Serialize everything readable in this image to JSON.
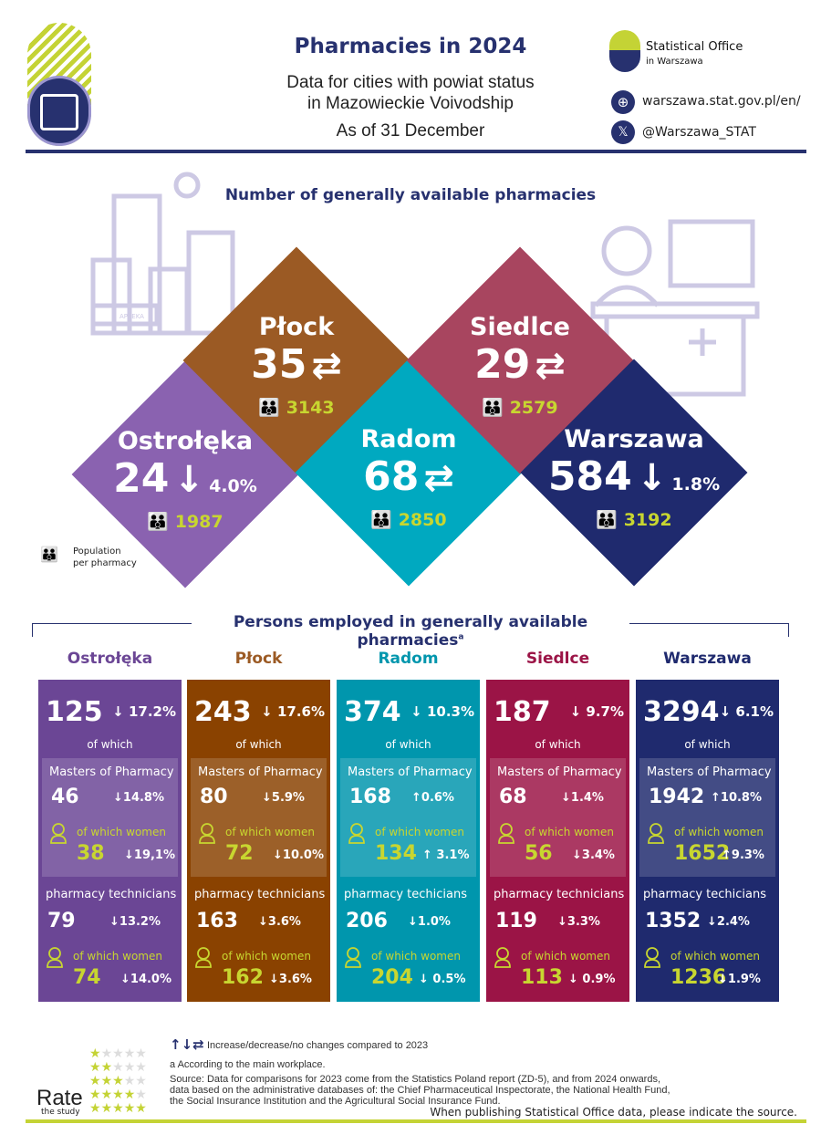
{
  "header": {
    "title": "Pharmacies in 2024",
    "subtitle1": "Data for cities with powiat status",
    "subtitle2": "in Mazowieckie Voivodship",
    "subtitle3": "As of 31 December",
    "org_name": "Statistical Office",
    "org_city": "in Warszawa",
    "website": "warszawa.stat.gov.pl/en/",
    "twitter": "@Warszawa_STAT",
    "pharmacy_sign": "APTEKA"
  },
  "colors": {
    "navy": "#27316f",
    "lime": "#c4d335"
  },
  "pharmacies": {
    "title": "Number of generally available pharmacies",
    "legend": "Population per pharmacy",
    "cities": [
      {
        "name": "Ostrołęka",
        "count": "24",
        "change": "down",
        "pct": "4.0%",
        "population": "1987",
        "color": "#8a62b0"
      },
      {
        "name": "Płock",
        "count": "35",
        "change": "none",
        "pct": "",
        "population": "3143",
        "color": "#9b5a24"
      },
      {
        "name": "Radom",
        "count": "68",
        "change": "none",
        "pct": "",
        "population": "2850",
        "color": "#00a9c0"
      },
      {
        "name": "Siedlce",
        "count": "29",
        "change": "none",
        "pct": "",
        "population": "2579",
        "color": "#a8455f"
      },
      {
        "name": "Warszawa",
        "count": "584",
        "change": "down",
        "pct": "1.8%",
        "population": "3192",
        "color": "#1f2a6e"
      }
    ]
  },
  "employed": {
    "title": "Persons employed in generally available pharmacies",
    "title_sup": "a",
    "of_which": "of which",
    "masters_label": "Masters of Pharmacy",
    "women_label": "of which women",
    "cities": [
      {
        "name": "Ostrołęka",
        "color": "#6b4695",
        "name_color": "#6b4695",
        "total": "125",
        "total_pct": "↓ 17.2%",
        "masters": "46",
        "masters_pct": "↓14.8%",
        "masters_women": "38",
        "masters_women_pct": "↓19,1%",
        "tech_label": "pharmacy technicians",
        "tech": "79",
        "tech_pct": "↓13.2%",
        "tech_women": "74",
        "tech_women_pct": "↓14.0%"
      },
      {
        "name": "Płock",
        "color": "#8a4200",
        "name_color": "#9b5a24",
        "total": "243",
        "total_pct": "↓ 17.6%",
        "masters": "80",
        "masters_pct": "↓5.9%",
        "masters_women": "72",
        "masters_women_pct": "↓10.0%",
        "tech_label": "pharmacy technicians",
        "tech": "163",
        "tech_pct": "↓3.6%",
        "tech_women": "162",
        "tech_women_pct": "↓3.6%"
      },
      {
        "name": "Radom",
        "color": "#0096ad",
        "name_color": "#0096ad",
        "total": "374",
        "total_pct": "↓ 10.3%",
        "masters": "168",
        "masters_pct": "↑0.6%",
        "masters_women": "134",
        "masters_women_pct": "↑ 3.1%",
        "tech_label": "pharmacy techicians",
        "tech": "206",
        "tech_pct": "↓1.0%",
        "tech_women": "204",
        "tech_women_pct": "↓ 0.5%"
      },
      {
        "name": "Siedlce",
        "color": "#9b1446",
        "name_color": "#9b1446",
        "total": "187",
        "total_pct": "↓ 9.7%",
        "masters": "68",
        "masters_pct": "↓1.4%",
        "masters_women": "56",
        "masters_women_pct": "↓3.4%",
        "tech_label": "pharmacy technicians",
        "tech": "119",
        "tech_pct": "↓3.3%",
        "tech_women": "113",
        "tech_women_pct": "↓ 0.9%"
      },
      {
        "name": "Warszawa",
        "color": "#1f2a6e",
        "name_color": "#1f2a6e",
        "total": "3294",
        "total_pct": "↓ 6.1%",
        "masters": "1942",
        "masters_pct": "↑10.8%",
        "masters_women": "1652",
        "masters_women_pct": "↑9.3%",
        "tech_label": "pharmacy techicians",
        "tech": "1352",
        "tech_pct": "↓2.4%",
        "tech_women": "1236",
        "tech_women_pct": "↓1.9%"
      }
    ]
  },
  "footer": {
    "legend": "Increase/decrease/no changes compared to 2023",
    "note_a": "a According to the main workplace.",
    "source": "Source: Data for comparisons for 2023 come from the Statistics Poland report (ZD-5), and from 2024 onwards, data based on the administrative databases of: the Chief Pharmaceutical Inspectorate, the National Health Fund, the Social Insurance Institution and the Agricultural Social Insurance Fund.",
    "publish_note": "When publishing Statistical Office data, please indicate the source.",
    "rate": "Rate",
    "rate_sub": "the study"
  }
}
